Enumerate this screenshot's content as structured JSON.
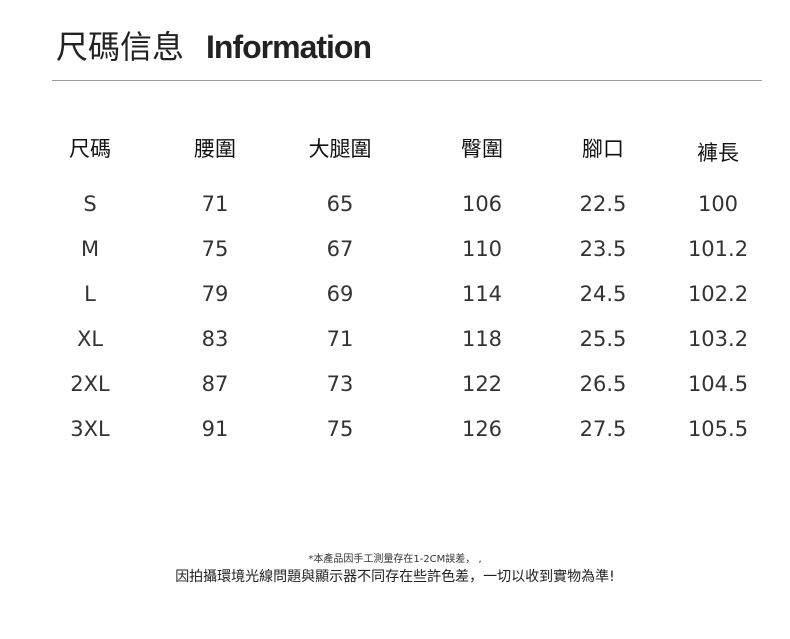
{
  "title": {
    "zh": "尺碼信息",
    "en": "Information"
  },
  "table": {
    "headers": [
      "尺碼",
      "腰圍",
      "大腿圍",
      "臀圍",
      "腳口",
      "褲長"
    ],
    "rows": [
      [
        "S",
        "71",
        "65",
        "106",
        "22.5",
        "100"
      ],
      [
        "M",
        "75",
        "67",
        "110",
        "23.5",
        "101.2"
      ],
      [
        "L",
        "79",
        "69",
        "114",
        "24.5",
        "102.2"
      ],
      [
        "XL",
        "83",
        "71",
        "118",
        "25.5",
        "103.2"
      ],
      [
        "2XL",
        "87",
        "73",
        "122",
        "26.5",
        "104.5"
      ],
      [
        "3XL",
        "91",
        "75",
        "126",
        "27.5",
        "105.5"
      ]
    ]
  },
  "notes": {
    "line1": "*本產品因手工測量存在1-2CM誤差， ,",
    "line2": "因拍攝環境光線問題與顯示器不同存在些許色差，一切以收到實物為準!"
  }
}
